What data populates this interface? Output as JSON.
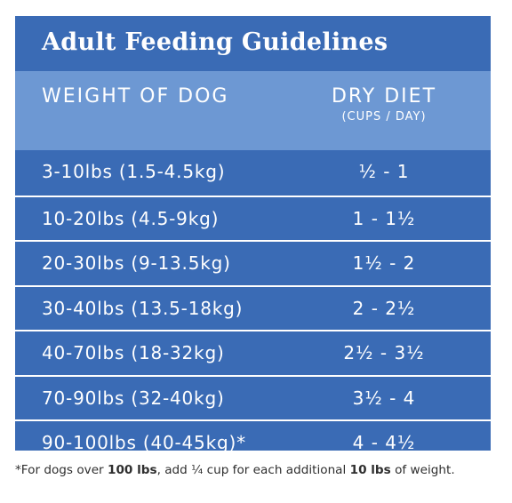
{
  "title": "Adult Feeding Guidelines",
  "header": {
    "col1": "WEIGHT OF DOG",
    "col2": "DRY DIET",
    "col2_sub": "(CUPS / DAY)"
  },
  "rows": [
    {
      "weight": "3-10lbs (1.5-4.5kg)",
      "amount": "½ - 1"
    },
    {
      "weight": "10-20lbs (4.5-9kg)",
      "amount": "1 - 1½"
    },
    {
      "weight": "20-30lbs (9-13.5kg)",
      "amount": "1½ - 2"
    },
    {
      "weight": "30-40lbs (13.5-18kg)",
      "amount": "2 - 2½"
    },
    {
      "weight": "40-70lbs (18-32kg)",
      "amount": "2½ - 3½"
    },
    {
      "weight": "70-90lbs (32-40kg)",
      "amount": "3½ - 4"
    },
    {
      "weight": "90-100lbs (40-45kg)*",
      "amount": "4 - 4½"
    }
  ],
  "footnote": {
    "part1": "*For dogs over ",
    "bold1": "100 lbs",
    "part2": ", add ¼ cup for each additional ",
    "bold2": "10 lbs",
    "part3": " of weight."
  },
  "colors": {
    "card_background": "#3a6bb5",
    "header_background": "#6d98d3",
    "text": "#ffffff"
  }
}
